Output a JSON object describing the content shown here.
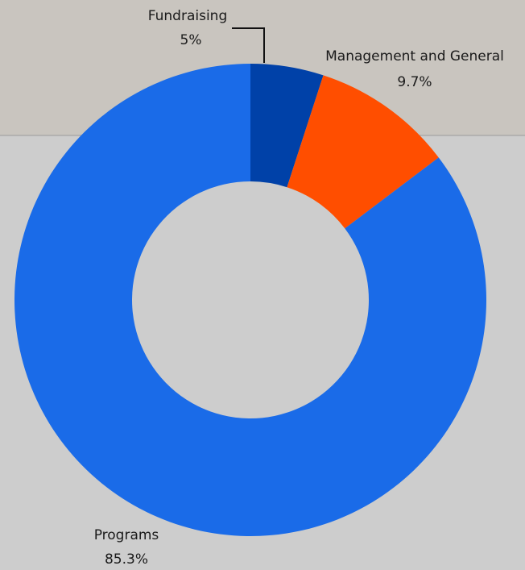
{
  "chart_data": {
    "type": "donut",
    "categories": [
      "Fundraising",
      "Management and General",
      "Programs"
    ],
    "values": [
      5,
      9.7,
      85.3
    ],
    "value_labels": [
      "5%",
      "9.7%",
      "85.3%"
    ],
    "colors": [
      "#0041a8",
      "#ff4e00",
      "#1a6be8"
    ]
  }
}
